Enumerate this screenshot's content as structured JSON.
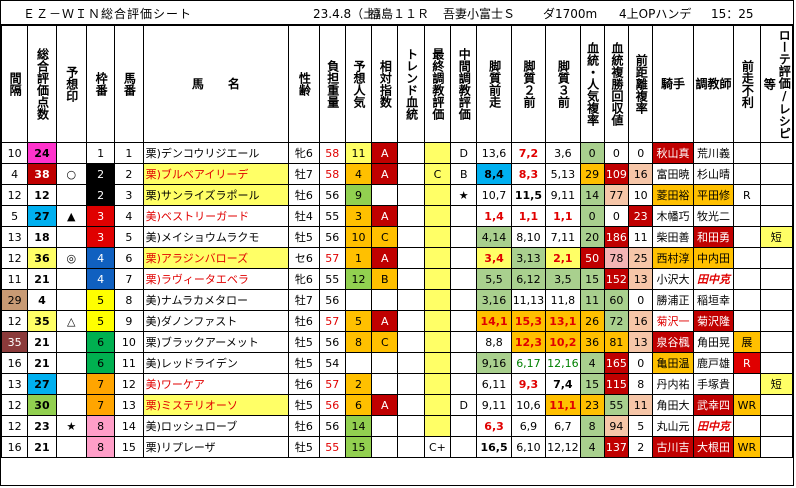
{
  "header": {
    "title": "ＥＺ－ＷＩＮ総合評価シート",
    "date": "23.4.8（土）",
    "race": "福島１１Ｒ",
    "race_name": "吾妻小富士Ｓ",
    "course": "ダ1700m",
    "condition": "4上OPハンデ",
    "time": "15：25"
  },
  "columns": [
    "間隔",
    "総合評価点数",
    "予想印",
    "枠番",
    "馬番",
    "馬　　名",
    "性齢",
    "負担重量",
    "予想人気",
    "相対指数",
    "トレンド血統",
    "最終調教評価",
    "中間調教評価",
    "脚質前走",
    "脚質２前",
    "脚質３前",
    "血統・人気複率",
    "血統複勝回収値",
    "前距離複率",
    "騎手",
    "調教師",
    "前走不利",
    "ローテ評価/レシピ等"
  ],
  "colors": {
    "red": "#e00000",
    "yellow": "#ffff00",
    "black": "#000000",
    "blue": "#1060c0",
    "green": "#00b050",
    "orange": "#ffa500",
    "pink": "#ff9ec8"
  },
  "rows": [
    {
      "interval": "10",
      "score": "24",
      "mark": "",
      "waku": "1",
      "umaban": "1",
      "name": "栗)デンコウリジエール",
      "sex_age": "牝6",
      "weight": "58",
      "pop": "11",
      "rel": "A",
      "trend": "",
      "final": "",
      "mid": "D",
      "s1": "13,6",
      "s2": "7,2",
      "s3": "3,6",
      "bl": "0",
      "ret": "0",
      "dist": "0",
      "jockey": "秋山真",
      "trainer": "荒川義",
      "foul": "",
      "rote": ""
    },
    {
      "interval": "4",
      "score": "38",
      "mark": "○",
      "waku": "2",
      "umaban": "2",
      "name": "栗)ブルベアイリーデ",
      "sex_age": "牡7",
      "weight": "58",
      "pop": "4",
      "rel": "A",
      "trend": "",
      "final": "C",
      "mid": "B",
      "s1": "8,4",
      "s2": "8,3",
      "s3": "5,13",
      "bl": "29",
      "ret": "109",
      "dist": "16",
      "jockey": "富田暁",
      "trainer": "杉山晴",
      "foul": "",
      "rote": ""
    },
    {
      "interval": "12",
      "score": "12",
      "mark": "",
      "waku": "2",
      "umaban": "3",
      "name": "栗)サンライズラポール",
      "sex_age": "牡6",
      "weight": "56",
      "pop": "9",
      "rel": "",
      "trend": "",
      "final": "",
      "mid": "★",
      "s1": "10,7",
      "s2": "11,5",
      "s3": "9,11",
      "bl": "14",
      "ret": "77",
      "dist": "10",
      "jockey": "菱田裕",
      "trainer": "平田修",
      "foul": "R",
      "rote": ""
    },
    {
      "interval": "5",
      "score": "27",
      "mark": "▲",
      "waku": "3",
      "umaban": "4",
      "name": "美)ベストリーガード",
      "sex_age": "牡4",
      "weight": "55",
      "pop": "3",
      "rel": "A",
      "trend": "",
      "final": "",
      "mid": "",
      "s1": "1,4",
      "s2": "1,1",
      "s3": "1,1",
      "bl": "0",
      "ret": "0",
      "dist": "23",
      "jockey": "木幡巧",
      "trainer": "牧光二",
      "foul": "",
      "rote": ""
    },
    {
      "interval": "13",
      "score": "18",
      "mark": "",
      "waku": "3",
      "umaban": "5",
      "name": "美)メイショウムラクモ",
      "sex_age": "牡5",
      "weight": "56",
      "pop": "10",
      "rel": "C",
      "trend": "",
      "final": "",
      "mid": "",
      "s1": "4,14",
      "s2": "8,10",
      "s3": "7,11",
      "bl": "20",
      "ret": "186",
      "dist": "11",
      "jockey": "柴田善",
      "trainer": "和田勇",
      "foul": "",
      "rote": "短"
    },
    {
      "interval": "12",
      "score": "36",
      "mark": "◎",
      "waku": "4",
      "umaban": "6",
      "name": "栗)アラジンバローズ",
      "sex_age": "セ6",
      "weight": "57",
      "pop": "1",
      "rel": "A",
      "trend": "",
      "final": "",
      "mid": "",
      "s1": "3,4",
      "s2": "3,13",
      "s3": "2,1",
      "bl": "50",
      "ret": "78",
      "dist": "25",
      "jockey": "西村淳",
      "trainer": "中内田",
      "foul": "",
      "rote": ""
    },
    {
      "interval": "11",
      "score": "21",
      "mark": "",
      "waku": "4",
      "umaban": "7",
      "name": "栗)ラヴィータエベラ",
      "sex_age": "牝6",
      "weight": "55",
      "pop": "12",
      "rel": "B",
      "trend": "",
      "final": "",
      "mid": "",
      "s1": "5,5",
      "s2": "6,12",
      "s3": "3,5",
      "bl": "15",
      "ret": "152",
      "dist": "13",
      "jockey": "小沢大",
      "trainer": "田中克",
      "foul": "",
      "rote": ""
    },
    {
      "interval": "29",
      "score": "4",
      "mark": "",
      "waku": "5",
      "umaban": "8",
      "name": "美)ナムラカメタロー",
      "sex_age": "牡7",
      "weight": "56",
      "pop": "",
      "rel": "",
      "trend": "",
      "final": "",
      "mid": "",
      "s1": "3,16",
      "s2": "11,13",
      "s3": "11,8",
      "bl": "11",
      "ret": "60",
      "dist": "0",
      "jockey": "勝浦正",
      "trainer": "稲垣幸",
      "foul": "",
      "rote": ""
    },
    {
      "interval": "12",
      "score": "35",
      "mark": "△",
      "waku": "5",
      "umaban": "9",
      "name": "美)ダノンファスト",
      "sex_age": "牡6",
      "weight": "57",
      "pop": "5",
      "rel": "A",
      "trend": "",
      "final": "",
      "mid": "",
      "s1": "14,1",
      "s2": "15,3",
      "s3": "13,1",
      "bl": "26",
      "ret": "72",
      "dist": "16",
      "jockey": "菊沢一",
      "trainer": "菊沢隆",
      "foul": "",
      "rote": ""
    },
    {
      "interval": "35",
      "score": "21",
      "mark": "",
      "waku": "6",
      "umaban": "10",
      "name": "栗)ブラックアーメット",
      "sex_age": "牡5",
      "weight": "56",
      "pop": "8",
      "rel": "C",
      "trend": "",
      "final": "",
      "mid": "",
      "s1": "8,8",
      "s2": "12,3",
      "s3": "10,2",
      "bl": "36",
      "ret": "81",
      "dist": "13",
      "jockey": "泉谷楓",
      "trainer": "角田晃",
      "foul": "展",
      "rote": ""
    },
    {
      "interval": "16",
      "score": "21",
      "mark": "",
      "waku": "6",
      "umaban": "11",
      "name": "美)レッドライデン",
      "sex_age": "牡5",
      "weight": "54",
      "pop": "",
      "rel": "",
      "trend": "",
      "final": "",
      "mid": "",
      "s1": "9,16",
      "s2": "6,17",
      "s3": "12,16",
      "bl": "4",
      "ret": "165",
      "dist": "0",
      "jockey": "亀田温",
      "trainer": "鹿戸雄",
      "foul": "R",
      "rote": ""
    },
    {
      "interval": "13",
      "score": "27",
      "mark": "",
      "waku": "7",
      "umaban": "12",
      "name": "美)ワーケア",
      "sex_age": "牡6",
      "weight": "57",
      "pop": "2",
      "rel": "",
      "trend": "",
      "final": "",
      "mid": "",
      "s1": "6,11",
      "s2": "9,3",
      "s3": "7,4",
      "bl": "15",
      "ret": "115",
      "dist": "8",
      "jockey": "丹内祐",
      "trainer": "手塚貴",
      "foul": "",
      "rote": "短"
    },
    {
      "interval": "12",
      "score": "30",
      "mark": "",
      "waku": "7",
      "umaban": "13",
      "name": "栗)ミステリオーソ",
      "sex_age": "牡5",
      "weight": "56",
      "pop": "6",
      "rel": "A",
      "trend": "",
      "final": "",
      "mid": "D",
      "s1": "9,11",
      "s2": "10,6",
      "s3": "11,1",
      "bl": "23",
      "ret": "55",
      "dist": "11",
      "jockey": "角田大",
      "trainer": "武幸四",
      "foul": "WR",
      "rote": ""
    },
    {
      "interval": "12",
      "score": "23",
      "mark": "★",
      "waku": "8",
      "umaban": "14",
      "name": "美)ロッシュローブ",
      "sex_age": "牡6",
      "weight": "56",
      "pop": "14",
      "rel": "",
      "trend": "",
      "final": "",
      "mid": "",
      "s1": "6,3",
      "s2": "6,9",
      "s3": "6,7",
      "bl": "8",
      "ret": "94",
      "dist": "5",
      "jockey": "丸山元",
      "trainer": "田中克",
      "foul": "",
      "rote": ""
    },
    {
      "interval": "16",
      "score": "21",
      "mark": "",
      "waku": "8",
      "umaban": "15",
      "name": "栗)リプレーザ",
      "sex_age": "牡5",
      "weight": "55",
      "pop": "15",
      "rel": "",
      "trend": "",
      "final": "C+",
      "mid": "",
      "s1": "16,5",
      "s2": "6,10",
      "s3": "12,12",
      "bl": "4",
      "ret": "137",
      "dist": "2",
      "jockey": "古川吉",
      "trainer": "大根田",
      "foul": "WR",
      "rote": ""
    }
  ]
}
